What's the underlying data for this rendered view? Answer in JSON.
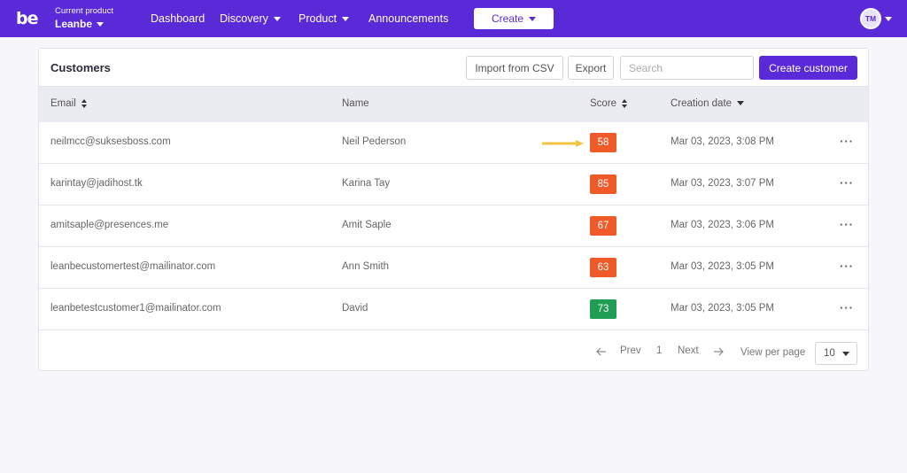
{
  "nav": {
    "logo": "be",
    "product_caption": "Current product",
    "product_name": "Leanbe",
    "links": [
      "Dashboard",
      "Discovery",
      "Product",
      "Announcements"
    ],
    "create_label": "Create",
    "avatar_initials": "TM",
    "brand_color": "#5b2ad8"
  },
  "card": {
    "title": "Customers",
    "import_label": "Import from CSV",
    "export_label": "Export",
    "search_placeholder": "Search",
    "create_customer_label": "Create customer"
  },
  "table": {
    "headers": [
      "Email",
      "Name",
      "Score",
      "Creation date"
    ],
    "rows": [
      {
        "email": "neilmcc@suksesboss.com",
        "name": "Neil Pederson",
        "score": "58",
        "score_color": "#f05a28",
        "date": "Mar 03, 2023, 3:08 PM"
      },
      {
        "email": "karintay@jadihost.tk",
        "name": "Karina Tay",
        "score": "85",
        "score_color": "#f05a28",
        "date": "Mar 03, 2023, 3:07 PM"
      },
      {
        "email": "amitsaple@presences.me",
        "name": "Amit Saple",
        "score": "67",
        "score_color": "#f05a28",
        "date": "Mar 03, 2023, 3:06 PM"
      },
      {
        "email": "leanbecustomertest@mailinator.com",
        "name": "Ann Smith",
        "score": "63",
        "score_color": "#f05a28",
        "date": "Mar 03, 2023, 3:05 PM"
      },
      {
        "email": "leanbetestcustomer1@mailinator.com",
        "name": "David",
        "score": "73",
        "score_color": "#1f9d55",
        "date": "Mar 03, 2023, 3:05 PM"
      }
    ],
    "more_label": "···",
    "highlight_arrow_color": "#f5c542"
  },
  "pagination": {
    "prev_label": "Prev",
    "page": "1",
    "next_label": "Next",
    "view_per_page_label": "View per page",
    "per_page_value": "10"
  }
}
